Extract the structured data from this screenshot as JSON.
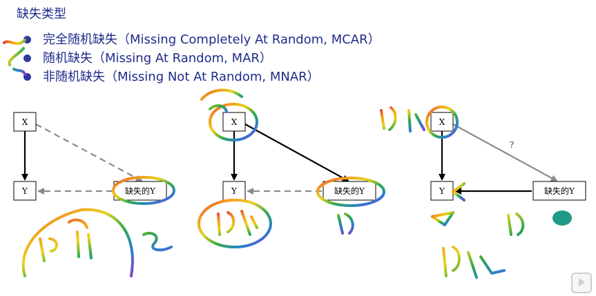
{
  "title": "缺失类型",
  "bullets": [
    "完全随机缺失（Missing Completely At Random, MCAR）",
    "随机缺失（Missing At Random, MAR）",
    "非随机缺失（Missing Not At Random, MNAR）"
  ],
  "diagrams": [
    {
      "x_label": "X",
      "y_label": "Y",
      "missing_label": "缺失的Y"
    },
    {
      "x_label": "X",
      "y_label": "Y",
      "missing_label": "缺失的Y"
    },
    {
      "x_label": "X",
      "y_label": "Y",
      "missing_label": "缺失的Y",
      "question": "?"
    }
  ],
  "colors": {
    "heading": "#1f2b8a",
    "solid_edge": "#000000",
    "dashed_edge": "#8a8a8a",
    "uncertain_edge": "#8a8a8a"
  },
  "icons": [
    "bullet-dot-icon",
    "video-play-icon"
  ]
}
